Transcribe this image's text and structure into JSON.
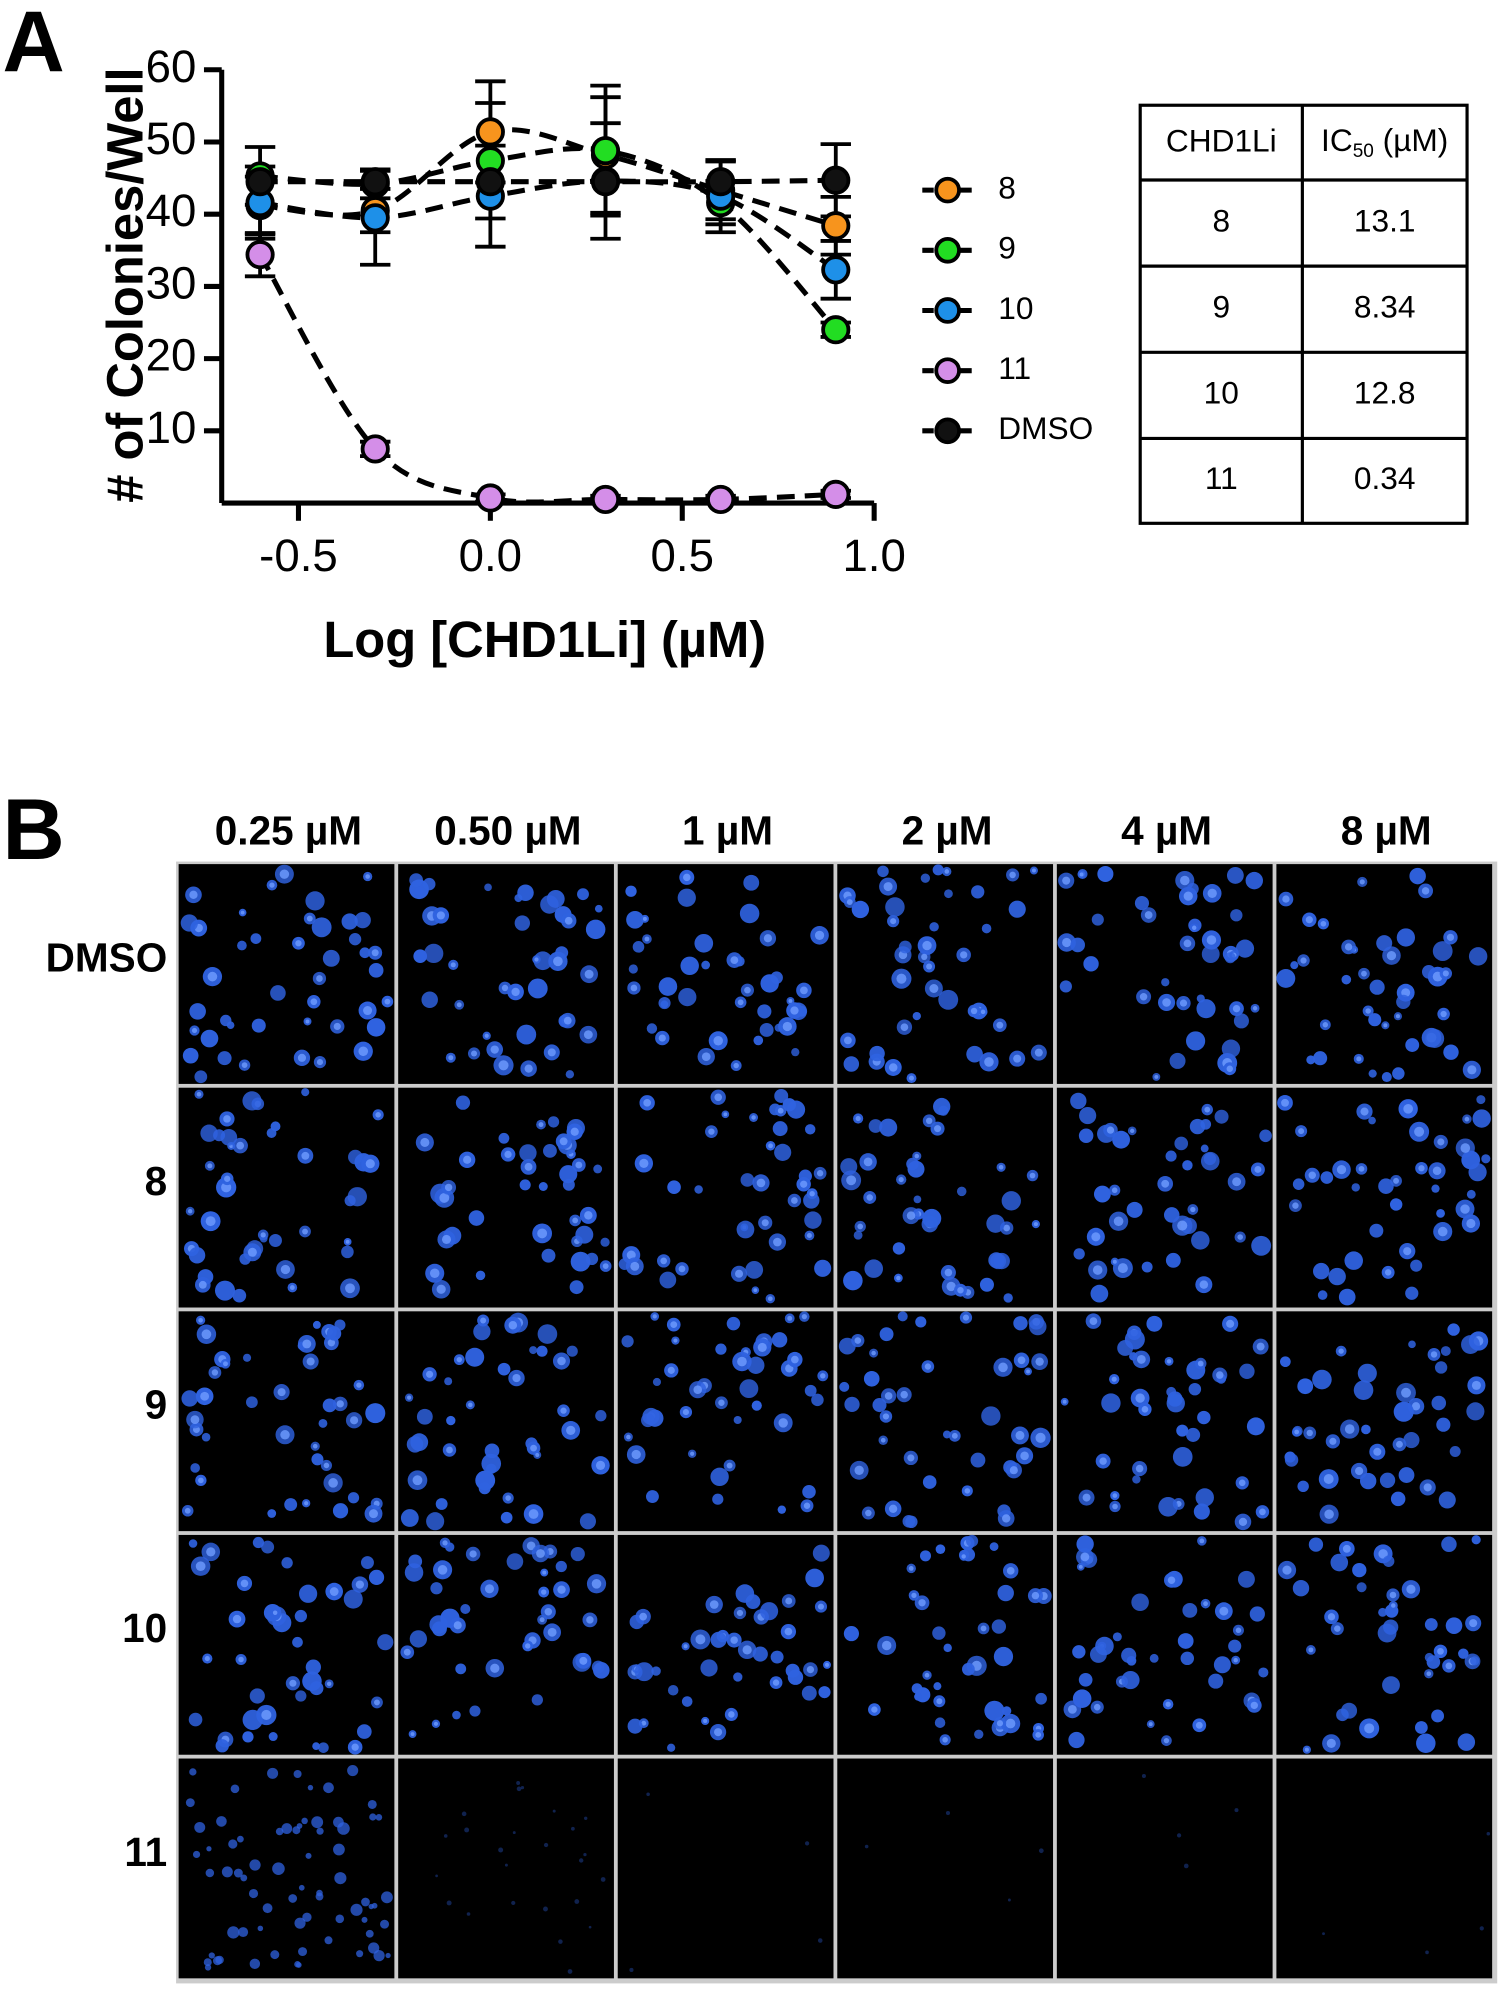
{
  "chart_data": {
    "type": "scatter",
    "panel_label": "A",
    "x_label": "Log [CHD1Li] (µM)",
    "y_label": "# of Colonies/Well",
    "xlim": [
      -0.7,
      1.0
    ],
    "xticks": [
      {
        "value": -0.5,
        "label": "-0.5"
      },
      {
        "value": 0,
        "label": "0.0"
      },
      {
        "value": 0.5,
        "label": "0.5"
      },
      {
        "value": 1,
        "label": "1.0"
      }
    ],
    "ylim": [
      0,
      60
    ],
    "yticks": [
      10,
      20,
      30,
      40,
      50,
      60
    ],
    "x": [
      -0.6,
      -0.3,
      0,
      0.3,
      0.6,
      0.9
    ],
    "series": [
      {
        "name": "8",
        "color": "#f7941d",
        "values": [
          41.2,
          40.5,
          51.4,
          48.2,
          43.3,
          38.4
        ],
        "errors": [
          4,
          3,
          7,
          8,
          4,
          4
        ]
      },
      {
        "name": "9",
        "color": "#22dd22",
        "values": [
          45.3,
          44.2,
          47.4,
          48.8,
          41.6,
          24.0
        ],
        "errors": [
          4,
          2,
          8,
          9,
          3,
          1
        ]
      },
      {
        "name": "10",
        "color": "#1e90e8",
        "values": [
          41.6,
          39.5,
          42.5,
          44.6,
          42.5,
          32.3
        ],
        "errors": [
          5,
          6.5,
          7,
          8,
          5,
          4
        ]
      },
      {
        "name": "11",
        "color": "#d48ee8",
        "values": [
          34.4,
          7.5,
          0.7,
          0.5,
          0.5,
          1.2
        ],
        "errors": [
          3,
          1,
          0.5,
          0.5,
          0.5,
          0.5
        ]
      },
      {
        "name": "DMSO",
        "color": "#111111",
        "values": [
          44.5,
          44.5,
          44.5,
          44.5,
          44.5,
          44.7
        ],
        "errors": [
          0,
          0,
          0,
          0,
          0,
          5
        ]
      }
    ]
  },
  "table": {
    "header": {
      "col1": "CHD1Li",
      "col2_main": "IC",
      "col2_sub": "50",
      "col2_rest": " (µM)"
    },
    "rows": [
      [
        "8",
        "13.1"
      ],
      [
        "9",
        "8.34"
      ],
      [
        "10",
        "12.8"
      ],
      [
        "11",
        "0.34"
      ]
    ]
  },
  "images": {
    "panel_label": "B",
    "columns": [
      "0.25 µM",
      "0.50 µM",
      "1 µM",
      "2 µM",
      "4 µM",
      "8 µM"
    ],
    "rows": [
      "DMSO",
      "8",
      "9",
      "10",
      "11"
    ]
  }
}
